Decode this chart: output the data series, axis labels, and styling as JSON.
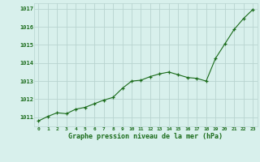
{
  "x": [
    0,
    1,
    2,
    3,
    4,
    5,
    6,
    7,
    8,
    9,
    10,
    11,
    12,
    13,
    14,
    15,
    16,
    17,
    18,
    19,
    20,
    21,
    22,
    23
  ],
  "y": [
    1010.8,
    1011.05,
    1011.25,
    1011.2,
    1011.45,
    1011.55,
    1011.75,
    1011.95,
    1012.1,
    1012.6,
    1013.0,
    1013.05,
    1013.25,
    1013.4,
    1013.5,
    1013.35,
    1013.2,
    1013.15,
    1013.0,
    1014.25,
    1015.05,
    1015.85,
    1016.45,
    1016.95
  ],
  "line_color": "#1a6b1a",
  "marker_color": "#1a6b1a",
  "bg_color": "#d8f0ec",
  "grid_color": "#b8d4d0",
  "title": "Graphe pression niveau de la mer (hPa)",
  "tick_label_color": "#1a6b1a",
  "title_color": "#1a6b1a",
  "ylim": [
    1010.5,
    1017.3
  ],
  "yticks": [
    1011,
    1012,
    1013,
    1014,
    1015,
    1016,
    1017
  ],
  "xticks": [
    0,
    1,
    2,
    3,
    4,
    5,
    6,
    7,
    8,
    9,
    10,
    11,
    12,
    13,
    14,
    15,
    16,
    17,
    18,
    19,
    20,
    21,
    22,
    23
  ]
}
